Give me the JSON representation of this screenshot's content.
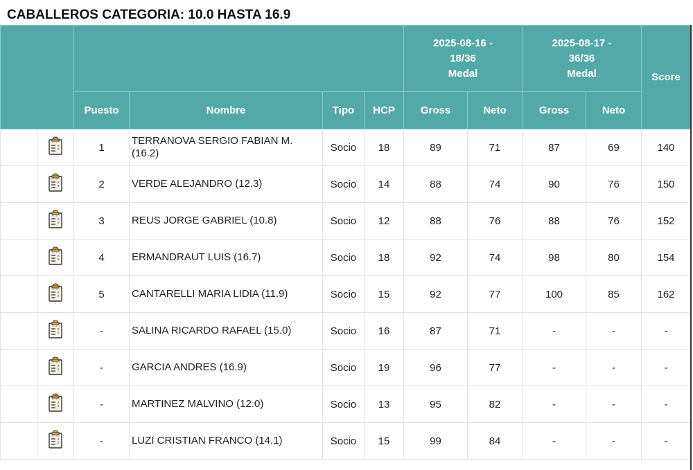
{
  "title": "CABALLEROS CATEGORIA: 10.0 HASTA 16.9",
  "header": {
    "round1": [
      "2025-08-16 -",
      "18/36",
      "Medal"
    ],
    "round2": [
      "2025-08-17 -",
      "36/36",
      "Medal"
    ],
    "score": "Score",
    "puesto": "Puesto",
    "nombre": "Nombre",
    "tipo": "Tipo",
    "hcp": "HCP",
    "gross1": "Gross",
    "neto1": "Neto",
    "gross2": "Gross",
    "neto2": "Neto"
  },
  "icon": "scorecard-clipboard-icon",
  "accent": "#52a9a7",
  "rows": [
    {
      "puesto": "1",
      "nombre": "TERRANOVA SERGIO FABIAN M. (16.2)",
      "tipo": "Socio",
      "hcp": "18",
      "gross1": "89",
      "neto1": "71",
      "gross2": "87",
      "neto2": "69",
      "score": "140"
    },
    {
      "puesto": "2",
      "nombre": "VERDE ALEJANDRO (12.3)",
      "tipo": "Socio",
      "hcp": "14",
      "gross1": "88",
      "neto1": "74",
      "gross2": "90",
      "neto2": "76",
      "score": "150"
    },
    {
      "puesto": "3",
      "nombre": "REUS JORGE GABRIEL (10.8)",
      "tipo": "Socio",
      "hcp": "12",
      "gross1": "88",
      "neto1": "76",
      "gross2": "88",
      "neto2": "76",
      "score": "152"
    },
    {
      "puesto": "4",
      "nombre": "ERMANDRAUT LUIS (16.7)",
      "tipo": "Socio",
      "hcp": "18",
      "gross1": "92",
      "neto1": "74",
      "gross2": "98",
      "neto2": "80",
      "score": "154"
    },
    {
      "puesto": "5",
      "nombre": "CANTARELLI MARIA LIDIA (11.9)",
      "tipo": "Socio",
      "hcp": "15",
      "gross1": "92",
      "neto1": "77",
      "gross2": "100",
      "neto2": "85",
      "score": "162"
    },
    {
      "puesto": "-",
      "nombre": "SALINA RICARDO RAFAEL (15.0)",
      "tipo": "Socio",
      "hcp": "16",
      "gross1": "87",
      "neto1": "71",
      "gross2": "-",
      "neto2": "-",
      "score": "-"
    },
    {
      "puesto": "-",
      "nombre": "GARCIA ANDRES (16.9)",
      "tipo": "Socio",
      "hcp": "19",
      "gross1": "96",
      "neto1": "77",
      "gross2": "-",
      "neto2": "-",
      "score": "-"
    },
    {
      "puesto": "-",
      "nombre": "MARTINEZ MALVINO (12.0)",
      "tipo": "Socio",
      "hcp": "13",
      "gross1": "95",
      "neto1": "82",
      "gross2": "-",
      "neto2": "-",
      "score": "-"
    },
    {
      "puesto": "-",
      "nombre": "LUZI CRISTIAN FRANCO (14.1)",
      "tipo": "Socio",
      "hcp": "15",
      "gross1": "99",
      "neto1": "84",
      "gross2": "-",
      "neto2": "-",
      "score": "-"
    }
  ]
}
